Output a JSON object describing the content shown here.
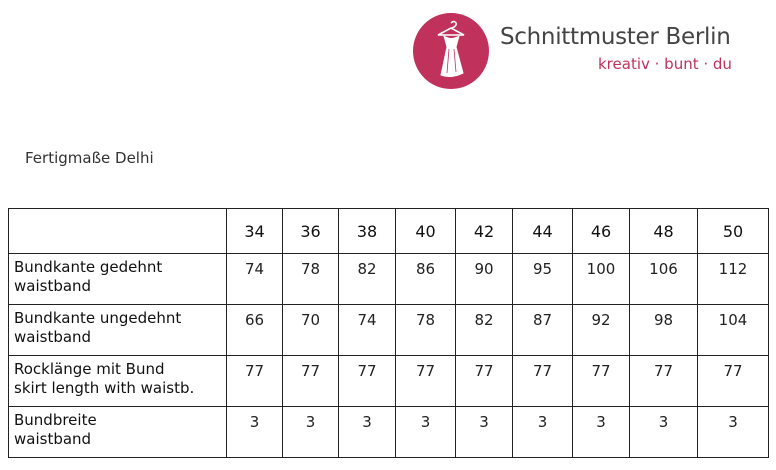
{
  "brand": {
    "name": "Schnittmuster Berlin",
    "tagline": "kreativ · bunt · du",
    "logo_color": "#c0325c"
  },
  "title": "Fertigmaße Delhi",
  "table": {
    "sizes": [
      "34",
      "36",
      "38",
      "40",
      "42",
      "44",
      "46",
      "48",
      "50"
    ],
    "rows": [
      {
        "label": "Bundkante gedehnt",
        "sublabel": "waistband",
        "values": [
          "74",
          "78",
          "82",
          "86",
          "90",
          "95",
          "100",
          "106",
          "112"
        ]
      },
      {
        "label": "Bundkante ungedehnt",
        "sublabel": "waistband",
        "values": [
          "66",
          "70",
          "74",
          "78",
          "82",
          "87",
          "92",
          "98",
          "104"
        ]
      },
      {
        "label": "Rocklänge mit Bund",
        "sublabel": "skirt length with waistb.",
        "values": [
          "77",
          "77",
          "77",
          "77",
          "77",
          "77",
          "77",
          "77",
          "77"
        ]
      },
      {
        "label": "Bundbreite",
        "sublabel": "waistband",
        "values": [
          "3",
          "3",
          "3",
          "3",
          "3",
          "3",
          "3",
          "3",
          "3"
        ]
      }
    ]
  }
}
